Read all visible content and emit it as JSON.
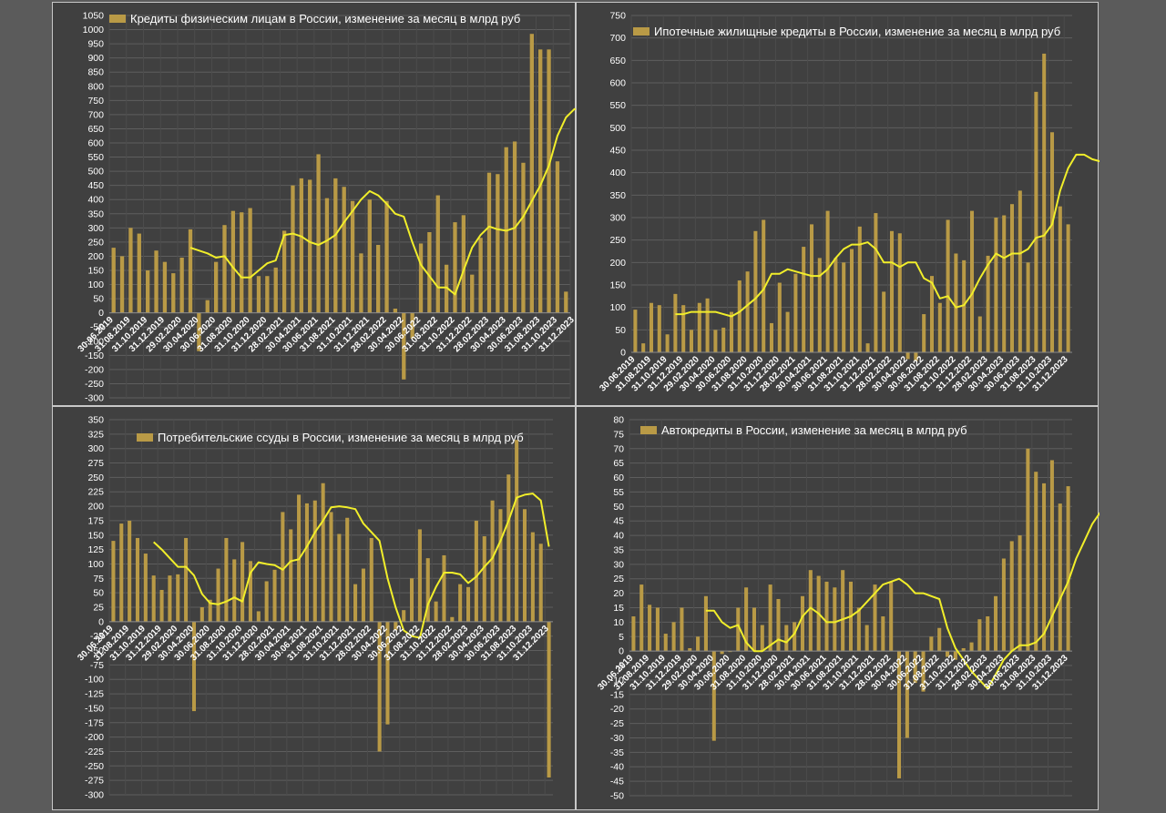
{
  "colors": {
    "bar": "#b99a46",
    "trend": "#f1ee2a",
    "grid": "#5e5e5e",
    "text": "#ffffff",
    "background": "#404040"
  },
  "chart_data": [
    {
      "type": "bar",
      "title": "Кредиты физическим лицам  в России, изменение за месяц в млрд руб",
      "ylim": [
        -300,
        1050
      ],
      "ystep": 50,
      "x_tick_labels": [
        "30.06.2019",
        "31.08.2019",
        "31.10.2019",
        "31.12.2019",
        "29.02.2020",
        "30.04.2020",
        "30.06.2020",
        "31.08.2020",
        "31.10.2020",
        "31.12.2020",
        "28.02.2021",
        "30.04.2021",
        "30.06.2021",
        "31.08.2021",
        "31.10.2021",
        "31.12.2021",
        "28.02.2022",
        "30.04.2022",
        "30.06.2022",
        "31.08.2022",
        "31.10.2022",
        "31.12.2022",
        "28.02.2023",
        "30.04.2023",
        "30.06.2023",
        "31.08.2023",
        "31.10.2023",
        "31.12.2023"
      ],
      "values": [
        230,
        200,
        300,
        280,
        150,
        220,
        180,
        140,
        195,
        295,
        -135,
        45,
        180,
        310,
        360,
        355,
        370,
        130,
        130,
        160,
        290,
        450,
        475,
        470,
        560,
        405,
        475,
        445,
        395,
        210,
        400,
        240,
        395,
        15,
        -235,
        -90,
        245,
        285,
        415,
        170,
        320,
        345,
        135,
        265,
        495,
        490,
        585,
        605,
        530,
        985,
        930,
        930,
        535,
        75
      ],
      "trend_start": 9,
      "trend": [
        230,
        220,
        210,
        195,
        200,
        160,
        125,
        125,
        150,
        175,
        185,
        275,
        280,
        270,
        250,
        240,
        255,
        275,
        320,
        360,
        400,
        430,
        415,
        385,
        350,
        340,
        250,
        170,
        130,
        90,
        90,
        65,
        150,
        230,
        275,
        305,
        295,
        290,
        300,
        340,
        395,
        450,
        520,
        625,
        690,
        720,
        715,
        625
      ]
    },
    {
      "type": "bar",
      "title": "Ипотечные жилищные кредиты в России, изменение за месяц в млрд руб",
      "ylim": [
        0,
        750
      ],
      "ystep": 50,
      "x_tick_labels": [
        "30.06.2019",
        "31.08.2019",
        "31.10.2019",
        "31.12.2019",
        "29.02.2020",
        "30.04.2020",
        "30.06.2020",
        "31.08.2020",
        "31.10.2020",
        "31.12.2020",
        "28.02.2021",
        "30.04.2021",
        "30.06.2021",
        "31.08.2021",
        "31.10.2021",
        "31.12.2021",
        "28.02.2022",
        "30.04.2022",
        "30.06.2022",
        "31.08.2022",
        "31.10.2022",
        "31.12.2022",
        "28.02.2023",
        "30.04.2023",
        "30.06.2023",
        "31.08.2023",
        "31.10.2023",
        "31.12.2023"
      ],
      "values": [
        95,
        20,
        110,
        105,
        40,
        130,
        105,
        50,
        110,
        120,
        50,
        55,
        90,
        160,
        180,
        270,
        295,
        65,
        155,
        90,
        175,
        235,
        285,
        210,
        315,
        210,
        200,
        230,
        280,
        20,
        310,
        135,
        270,
        265,
        -15,
        -20,
        85,
        170,
        110,
        295,
        220,
        205,
        315,
        80,
        215,
        300,
        305,
        330,
        360,
        200,
        580,
        665,
        490,
        325,
        285
      ],
      "trend_start": 5,
      "trend": [
        85,
        85,
        90,
        90,
        90,
        90,
        85,
        80,
        90,
        105,
        120,
        140,
        175,
        175,
        185,
        180,
        175,
        170,
        170,
        185,
        210,
        230,
        240,
        240,
        245,
        230,
        200,
        200,
        190,
        200,
        200,
        165,
        155,
        120,
        125,
        100,
        105,
        130,
        165,
        195,
        220,
        210,
        220,
        220,
        230,
        255,
        260,
        285,
        360,
        410,
        440,
        440,
        430,
        425
      ]
    },
    {
      "type": "bar",
      "title": "Потребительские ссуды в России, изменение за месяц в млрд руб",
      "ylim": [
        -300,
        350
      ],
      "ystep": 25,
      "x_tick_labels": [
        "30.06.2019",
        "31.08.2019",
        "31.10.2019",
        "31.12.2019",
        "29.02.2020",
        "30.04.2020",
        "30.06.2020",
        "31.08.2020",
        "31.10.2020",
        "31.12.2020",
        "28.02.2021",
        "30.04.2021",
        "30.06.2021",
        "31.08.2021",
        "31.10.2021",
        "31.12.2021",
        "28.02.2022",
        "30.04.2022",
        "30.06.2022",
        "31.08.2022",
        "31.10.2022",
        "31.12.2022",
        "28.02.2023",
        "30.04.2023",
        "30.06.2023",
        "31.08.2023",
        "31.10.2023",
        "31.12.2023"
      ],
      "values": [
        140,
        170,
        175,
        145,
        118,
        80,
        55,
        80,
        82,
        145,
        -155,
        25,
        38,
        92,
        145,
        108,
        138,
        105,
        18,
        70,
        90,
        190,
        160,
        220,
        205,
        210,
        240,
        190,
        152,
        180,
        65,
        92,
        145,
        -225,
        -178,
        -15,
        20,
        75,
        160,
        110,
        35,
        115,
        8,
        65,
        60,
        175,
        148,
        210,
        195,
        255,
        315,
        195,
        155,
        135,
        -270
      ],
      "trend_start": 5,
      "trend": [
        138,
        125,
        110,
        95,
        95,
        80,
        48,
        32,
        30,
        35,
        42,
        35,
        85,
        103,
        100,
        98,
        90,
        105,
        108,
        130,
        155,
        175,
        198,
        200,
        198,
        195,
        170,
        155,
        140,
        75,
        25,
        -15,
        -25,
        -28,
        30,
        60,
        85,
        85,
        82,
        67,
        78,
        95,
        110,
        140,
        175,
        215,
        220,
        222,
        210,
        130
      ]
    },
    {
      "type": "bar",
      "title": "Автокредиты в России, изменение за месяц в млрд руб",
      "ylim": [
        -50,
        80
      ],
      "ystep": 5,
      "x_tick_labels": [
        "30.06.2019",
        "31.08.2019",
        "31.10.2019",
        "31.12.2019",
        "29.02.2020",
        "30.04.2020",
        "30.06.2020",
        "31.08.2020",
        "31.10.2020",
        "31.12.2020",
        "28.02.2021",
        "30.04.2021",
        "30.06.2021",
        "31.08.2021",
        "31.10.2021",
        "31.12.2021",
        "28.02.2022",
        "30.04.2022",
        "30.06.2022",
        "31.08.2022",
        "31.10.2022",
        "31.12.2022",
        "28.02.2023",
        "30.04.2023",
        "30.06.2023",
        "31.08.2023",
        "31.10.2023",
        "31.12.2023"
      ],
      "values": [
        12,
        23,
        16,
        15,
        6,
        10,
        15,
        1,
        5,
        19,
        -31,
        -1,
        0,
        15,
        22,
        15,
        9,
        23,
        18,
        9,
        10,
        19,
        28,
        26,
        24,
        22,
        28,
        24,
        15,
        9,
        23,
        12,
        24,
        -44,
        -30,
        -11,
        -14,
        5,
        8,
        -2,
        -3,
        1,
        3,
        11,
        12,
        19,
        32,
        38,
        40,
        70,
        62,
        58,
        66,
        51,
        57
      ],
      "trend_start": 9,
      "trend": [
        14,
        14,
        10,
        8,
        9,
        3,
        0,
        0,
        2,
        4,
        3,
        6,
        12,
        15,
        13,
        10,
        10,
        11,
        12,
        14,
        17,
        20,
        23,
        24,
        25,
        23,
        20,
        20,
        19,
        18,
        8,
        1,
        -3,
        -7,
        -10,
        -13,
        -8,
        -3,
        0,
        2,
        2,
        3,
        6,
        12,
        18,
        24,
        32,
        38,
        44,
        48,
        53,
        56,
        59
      ]
    }
  ]
}
